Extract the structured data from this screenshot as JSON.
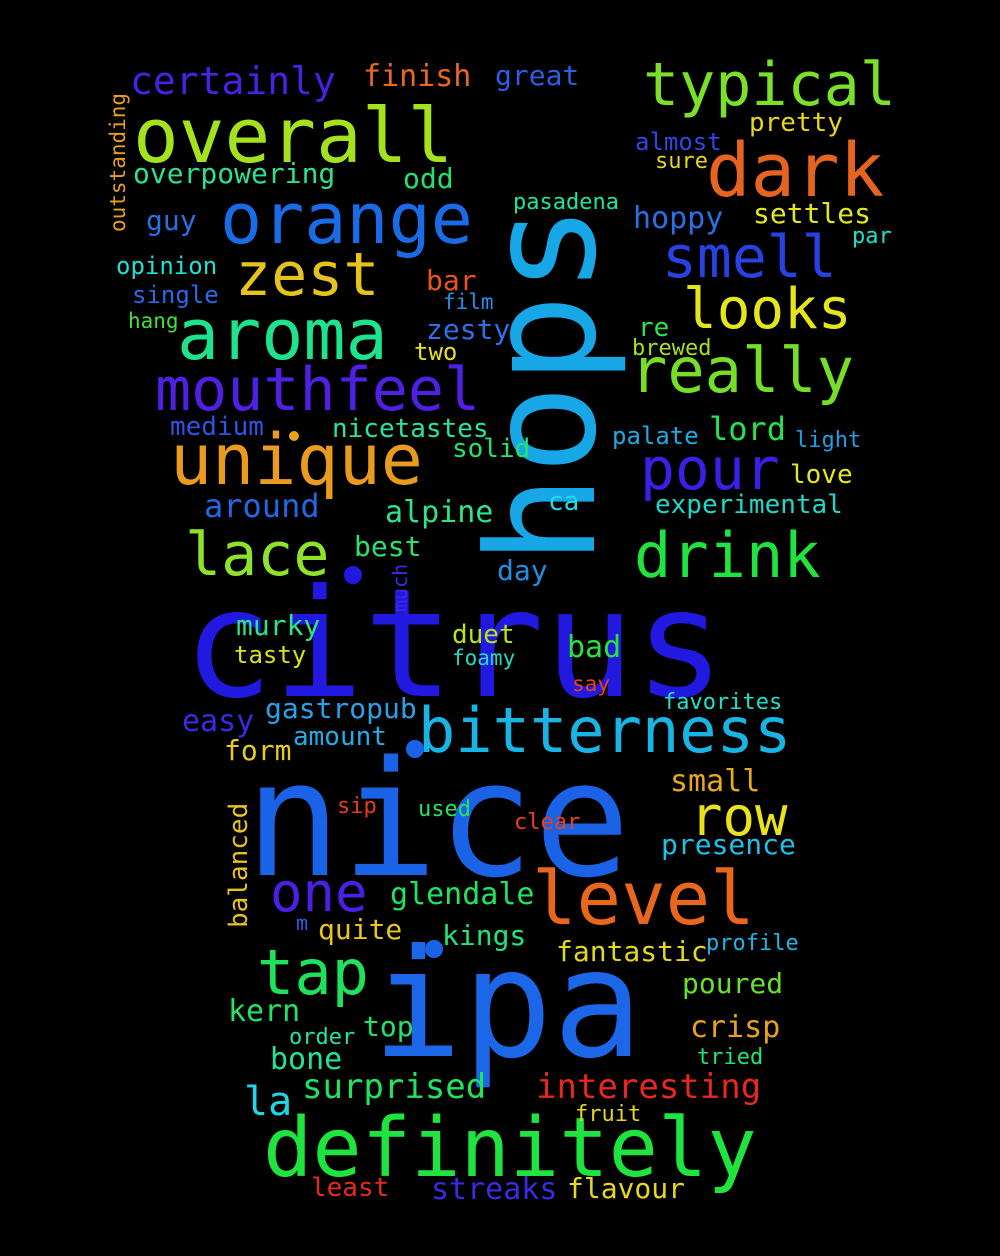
{
  "words": [
    {
      "text": "citrus",
      "color": "#2219e0"
    },
    {
      "text": "nice",
      "color": "#1a63e6"
    },
    {
      "text": "hops",
      "color": "#18a7e6"
    },
    {
      "text": "ipa",
      "color": "#1c66e8"
    },
    {
      "text": "definitely",
      "color": "#1fe33e"
    },
    {
      "text": "overall",
      "color": "#a3e21d"
    },
    {
      "text": "orange",
      "color": "#1a6ce6"
    },
    {
      "text": "dark",
      "color": "#e5641f"
    },
    {
      "text": "typical",
      "color": "#7ae02a"
    },
    {
      "text": "aroma",
      "color": "#1fe28d"
    },
    {
      "text": "unique",
      "color": "#e89b1d"
    },
    {
      "text": "mouthfeel",
      "color": "#4f1fe3"
    },
    {
      "text": "really",
      "color": "#75df27"
    },
    {
      "text": "bitterness",
      "color": "#18b4e6"
    },
    {
      "text": "level",
      "color": "#e8671d"
    },
    {
      "text": "zest",
      "color": "#e6c31c"
    },
    {
      "text": "smell",
      "color": "#2741e2"
    },
    {
      "text": "looks",
      "color": "#e3e61c"
    },
    {
      "text": "pour",
      "color": "#3a1fe6"
    },
    {
      "text": "drink",
      "color": "#1fe33f"
    },
    {
      "text": "lace",
      "color": "#8ee22a"
    },
    {
      "text": "tap",
      "color": "#1ee25c"
    },
    {
      "text": "row",
      "color": "#ebe31a"
    },
    {
      "text": "one",
      "color": "#4b1fe6"
    },
    {
      "text": "certainly",
      "color": "#4a20e4"
    },
    {
      "text": "finish",
      "color": "#e8691e"
    },
    {
      "text": "great",
      "color": "#2c5ee3"
    },
    {
      "text": "outstanding",
      "color": "#e8a01c"
    },
    {
      "text": "overpowering",
      "color": "#2ee08e"
    },
    {
      "text": "odd",
      "color": "#20e36a"
    },
    {
      "text": "guy",
      "color": "#2a6fe6"
    },
    {
      "text": "opinion",
      "color": "#1fe0d2"
    },
    {
      "text": "single",
      "color": "#2c67e6"
    },
    {
      "text": "hang",
      "color": "#3fe038"
    },
    {
      "text": "bar",
      "color": "#e8561e"
    },
    {
      "text": "film",
      "color": "#2290e6"
    },
    {
      "text": "zesty",
      "color": "#2f6fe8"
    },
    {
      "text": "two",
      "color": "#e4e21c"
    },
    {
      "text": "medium",
      "color": "#2b55e6"
    },
    {
      "text": "nicetastes",
      "color": "#2be49f"
    },
    {
      "text": "solid",
      "color": "#23e36a"
    },
    {
      "text": "around",
      "color": "#2366e6"
    },
    {
      "text": "alpine",
      "color": "#2fe38a"
    },
    {
      "text": "best",
      "color": "#2ce06f"
    },
    {
      "text": "ca",
      "color": "#1fdde0"
    },
    {
      "text": "day",
      "color": "#1f90e4"
    },
    {
      "text": "much",
      "color": "#3b29e3"
    },
    {
      "text": "murky",
      "color": "#2ee289"
    },
    {
      "text": "duet",
      "color": "#b8e21c"
    },
    {
      "text": "tasty",
      "color": "#d8e21c"
    },
    {
      "text": "foamy",
      "color": "#1fdcc4"
    },
    {
      "text": "bad",
      "color": "#2be33e"
    },
    {
      "text": "say",
      "color": "#e8401e"
    },
    {
      "text": "easy",
      "color": "#3a2ae4"
    },
    {
      "text": "gastropub",
      "color": "#2aa1e6"
    },
    {
      "text": "amount",
      "color": "#20aee6"
    },
    {
      "text": "form",
      "color": "#e8cb1e"
    },
    {
      "text": "favorites",
      "color": "#20e0c8"
    },
    {
      "text": "small",
      "color": "#e8a81e"
    },
    {
      "text": "sip",
      "color": "#e83a1e"
    },
    {
      "text": "used",
      "color": "#23e35c"
    },
    {
      "text": "clear",
      "color": "#e8401e"
    },
    {
      "text": "presence",
      "color": "#1fbfe6"
    },
    {
      "text": "balanced",
      "color": "#e8c21c"
    },
    {
      "text": "glendale",
      "color": "#20e360"
    },
    {
      "text": "m",
      "color": "#2f5ee6"
    },
    {
      "text": "quite",
      "color": "#e8c61c"
    },
    {
      "text": "kings",
      "color": "#20e37c"
    },
    {
      "text": "fantastic",
      "color": "#e3d81c"
    },
    {
      "text": "profile",
      "color": "#1fb4e6"
    },
    {
      "text": "kern",
      "color": "#20e36a"
    },
    {
      "text": "top",
      "color": "#20e36a"
    },
    {
      "text": "order",
      "color": "#20e3a6"
    },
    {
      "text": "poured",
      "color": "#69e02a"
    },
    {
      "text": "crisp",
      "color": "#e8a21c"
    },
    {
      "text": "tried",
      "color": "#20e373"
    },
    {
      "text": "bone",
      "color": "#20e396"
    },
    {
      "text": "la",
      "color": "#1fd6e6"
    },
    {
      "text": "surprised",
      "color": "#20e360"
    },
    {
      "text": "interesting",
      "color": "#e8281e"
    },
    {
      "text": "fruit",
      "color": "#e3d61c"
    },
    {
      "text": "least",
      "color": "#e8281e"
    },
    {
      "text": "streaks",
      "color": "#3a2ae4"
    },
    {
      "text": "flavour",
      "color": "#e8d81c"
    },
    {
      "text": "almost",
      "color": "#2f46e6"
    },
    {
      "text": "pretty",
      "color": "#e6d71c"
    },
    {
      "text": "sure",
      "color": "#e6d71c"
    },
    {
      "text": "pasadena",
      "color": "#20e3a2"
    },
    {
      "text": "hoppy",
      "color": "#2a6fe6"
    },
    {
      "text": "settles",
      "color": "#e3e61c"
    },
    {
      "text": "par",
      "color": "#1fe0c8"
    },
    {
      "text": "re",
      "color": "#2ee04a"
    },
    {
      "text": "brewed",
      "color": "#a6e01c"
    },
    {
      "text": "palate",
      "color": "#20a8e6"
    },
    {
      "text": "lord",
      "color": "#24e350"
    },
    {
      "text": "light",
      "color": "#1f9ee6"
    },
    {
      "text": "love",
      "color": "#e6e61c"
    },
    {
      "text": "experimental",
      "color": "#1fd8c8"
    }
  ],
  "dots": [
    {
      "color": "#e8a21c"
    },
    {
      "color": "#1a63e6"
    },
    {
      "color": "#2219e0"
    },
    {
      "color": "#1a63e6"
    }
  ]
}
